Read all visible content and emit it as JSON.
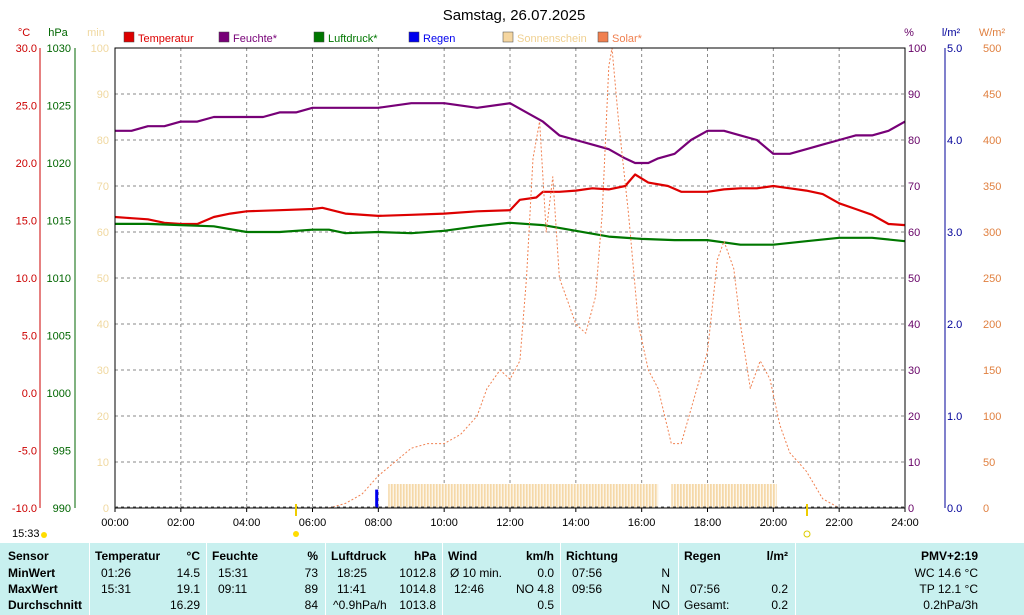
{
  "chart_data": {
    "type": "line",
    "title": "Samstag, 26.07.2025",
    "x_tick_labels": [
      "00:00",
      "02:00",
      "04:00",
      "06:00",
      "08:00",
      "10:00",
      "12:00",
      "14:00",
      "16:00",
      "18:00",
      "20:00",
      "22:00",
      "24:00"
    ],
    "xlim_hours": [
      0,
      24
    ],
    "axes": {
      "temperature": {
        "unit": "°C",
        "color": "#cc0000",
        "range": [
          -10,
          30
        ],
        "ticks": [
          "30.0",
          "25.0",
          "20.0",
          "15.0",
          "10.0",
          "5.0",
          "0.0",
          "-5.0",
          "-10.0"
        ]
      },
      "pressure": {
        "unit": "hPa",
        "color": "#006600",
        "range": [
          990,
          1030
        ],
        "ticks": [
          "1030",
          "1025",
          "1020",
          "1015",
          "1010",
          "1005",
          "1000",
          "995",
          "990"
        ]
      },
      "minutes": {
        "unit": "min",
        "color": "#f0d8a0",
        "range": [
          0,
          100
        ],
        "ticks": [
          "100",
          "90",
          "80",
          "70",
          "60",
          "50",
          "40",
          "30",
          "20",
          "10",
          "0"
        ]
      },
      "humidity": {
        "unit": "%",
        "color": "#660066",
        "range": [
          0,
          100
        ],
        "ticks": [
          "100",
          "90",
          "80",
          "70",
          "60",
          "50",
          "40",
          "30",
          "20",
          "10",
          "0"
        ]
      },
      "rain": {
        "unit": "l/m²",
        "color": "#000099",
        "range": [
          0,
          5
        ],
        "ticks": [
          "5.0",
          "4.0",
          "3.0",
          "2.0",
          "1.0",
          "0.0"
        ]
      },
      "solar": {
        "unit": "W/m²",
        "color": "#e08040",
        "range": [
          0,
          500
        ],
        "ticks": [
          "500",
          "450",
          "400",
          "350",
          "300",
          "250",
          "200",
          "150",
          "100",
          "50",
          "0"
        ]
      }
    },
    "legend": [
      {
        "name": "Temperatur",
        "color": "#dd0000"
      },
      {
        "name": "Feuchte*",
        "color": "#770077"
      },
      {
        "name": "Luftdruck*",
        "color": "#007700"
      },
      {
        "name": "Regen",
        "color": "#0000ee"
      },
      {
        "name": "Sonnenschein",
        "color": "#f5d6a0"
      },
      {
        "name": "Solar*",
        "color": "#f08050"
      }
    ],
    "sunrise_label": "15:33",
    "series": [
      {
        "name": "Temperatur",
        "axis": "temperature",
        "color": "#dd0000",
        "points": [
          [
            0,
            15.3
          ],
          [
            0.5,
            15.2
          ],
          [
            1,
            15.1
          ],
          [
            1.5,
            14.8
          ],
          [
            2,
            14.7
          ],
          [
            2.5,
            14.7
          ],
          [
            3,
            15.3
          ],
          [
            3.5,
            15.6
          ],
          [
            4,
            15.8
          ],
          [
            5,
            15.9
          ],
          [
            6,
            16.0
          ],
          [
            6.3,
            16.1
          ],
          [
            7,
            15.6
          ],
          [
            8,
            15.4
          ],
          [
            9,
            15.5
          ],
          [
            10,
            15.6
          ],
          [
            11,
            15.8
          ],
          [
            12,
            15.9
          ],
          [
            12.3,
            16.8
          ],
          [
            12.8,
            17.0
          ],
          [
            13,
            17.5
          ],
          [
            13.5,
            17.5
          ],
          [
            14,
            17.6
          ],
          [
            14.5,
            17.8
          ],
          [
            15,
            17.7
          ],
          [
            15.5,
            18.0
          ],
          [
            15.8,
            19.0
          ],
          [
            16.2,
            18.3
          ],
          [
            16.8,
            18.0
          ],
          [
            17.2,
            17.5
          ],
          [
            18,
            17.5
          ],
          [
            18.5,
            17.7
          ],
          [
            19,
            17.8
          ],
          [
            19.5,
            17.8
          ],
          [
            20,
            18.0
          ],
          [
            20.5,
            17.8
          ],
          [
            21,
            17.6
          ],
          [
            21.5,
            17.3
          ],
          [
            22,
            16.5
          ],
          [
            22.5,
            16.0
          ],
          [
            23,
            15.5
          ],
          [
            23.5,
            14.7
          ],
          [
            24,
            14.6
          ]
        ]
      },
      {
        "name": "Feuchte*",
        "axis": "humidity",
        "color": "#770077",
        "points": [
          [
            0,
            82
          ],
          [
            0.5,
            82
          ],
          [
            1,
            83
          ],
          [
            1.5,
            83
          ],
          [
            2,
            84
          ],
          [
            2.5,
            84
          ],
          [
            3,
            85
          ],
          [
            4,
            85
          ],
          [
            4.5,
            85
          ],
          [
            5,
            86
          ],
          [
            5.5,
            86
          ],
          [
            6,
            87
          ],
          [
            7,
            87
          ],
          [
            8,
            87
          ],
          [
            9,
            88
          ],
          [
            10,
            88
          ],
          [
            11,
            87
          ],
          [
            12,
            88
          ],
          [
            12.5,
            86
          ],
          [
            13,
            84
          ],
          [
            13.5,
            81
          ],
          [
            14,
            80
          ],
          [
            14.5,
            79
          ],
          [
            15,
            78
          ],
          [
            15.5,
            76
          ],
          [
            15.8,
            75
          ],
          [
            16.2,
            75
          ],
          [
            16.5,
            76
          ],
          [
            17,
            77
          ],
          [
            17.5,
            80
          ],
          [
            18,
            82
          ],
          [
            18.5,
            82
          ],
          [
            19,
            81
          ],
          [
            19.5,
            80
          ],
          [
            20,
            77
          ],
          [
            20.5,
            77
          ],
          [
            21,
            78
          ],
          [
            21.5,
            79
          ],
          [
            22,
            80
          ],
          [
            22.5,
            81
          ],
          [
            23,
            81
          ],
          [
            23.5,
            82
          ],
          [
            24,
            84
          ]
        ]
      },
      {
        "name": "Luftdruck*",
        "axis": "pressure",
        "color": "#007700",
        "points": [
          [
            0,
            1014.7
          ],
          [
            1,
            1014.7
          ],
          [
            2,
            1014.6
          ],
          [
            3,
            1014.5
          ],
          [
            4,
            1014.0
          ],
          [
            5,
            1014.0
          ],
          [
            6,
            1014.2
          ],
          [
            6.5,
            1014.2
          ],
          [
            7,
            1013.9
          ],
          [
            8,
            1014.0
          ],
          [
            9,
            1013.9
          ],
          [
            10,
            1014.1
          ],
          [
            11,
            1014.5
          ],
          [
            12,
            1014.8
          ],
          [
            13,
            1014.6
          ],
          [
            14,
            1014.1
          ],
          [
            15,
            1013.6
          ],
          [
            16,
            1013.4
          ],
          [
            17,
            1013.3
          ],
          [
            18,
            1013.3
          ],
          [
            19,
            1012.9
          ],
          [
            20,
            1012.9
          ],
          [
            21,
            1013.2
          ],
          [
            22,
            1013.5
          ],
          [
            23,
            1013.5
          ],
          [
            24,
            1013.2
          ]
        ]
      },
      {
        "name": "Solar*",
        "axis": "solar",
        "color": "#f08050",
        "dashed": true,
        "points": [
          [
            6.5,
            0
          ],
          [
            7,
            5
          ],
          [
            7.5,
            15
          ],
          [
            8,
            35
          ],
          [
            8.5,
            50
          ],
          [
            9,
            65
          ],
          [
            9.5,
            70
          ],
          [
            10,
            70
          ],
          [
            10.5,
            80
          ],
          [
            11,
            100
          ],
          [
            11.3,
            130
          ],
          [
            11.7,
            150
          ],
          [
            12,
            140
          ],
          [
            12.3,
            160
          ],
          [
            12.5,
            250
          ],
          [
            12.7,
            380
          ],
          [
            12.9,
            420
          ],
          [
            13.1,
            300
          ],
          [
            13.3,
            360
          ],
          [
            13.5,
            250
          ],
          [
            13.8,
            220
          ],
          [
            14,
            200
          ],
          [
            14.3,
            190
          ],
          [
            14.6,
            230
          ],
          [
            14.8,
            320
          ],
          [
            15,
            480
          ],
          [
            15.1,
            500
          ],
          [
            15.3,
            420
          ],
          [
            15.6,
            320
          ],
          [
            15.9,
            200
          ],
          [
            16.2,
            150
          ],
          [
            16.5,
            130
          ],
          [
            16.9,
            70
          ],
          [
            17.2,
            70
          ],
          [
            17.6,
            120
          ],
          [
            18,
            170
          ],
          [
            18.3,
            270
          ],
          [
            18.5,
            290
          ],
          [
            18.8,
            260
          ],
          [
            19,
            200
          ],
          [
            19.3,
            130
          ],
          [
            19.6,
            160
          ],
          [
            19.9,
            140
          ],
          [
            20.2,
            90
          ],
          [
            20.5,
            60
          ],
          [
            21,
            40
          ],
          [
            21.5,
            10
          ],
          [
            22,
            0
          ]
        ]
      }
    ],
    "sunshine_bars": [
      [
        8.3,
        16.5
      ],
      [
        16.9,
        20.1
      ]
    ],
    "rain_event": {
      "hour": 7.95,
      "value": 0.2
    }
  },
  "table": {
    "headers": {
      "sensor": "Sensor",
      "temp": "Temperatur",
      "temp_unit": "°C",
      "hum": "Feuchte",
      "hum_unit": "%",
      "press": "Luftdruck",
      "press_unit": "hPa",
      "wind": "Wind",
      "wind_unit": "km/h",
      "dir": "Richtung",
      "rain": "Regen",
      "rain_unit": "l/m²",
      "pmv": "PMV+2:19"
    },
    "min": {
      "label": "MinWert",
      "temp_time": "01:26",
      "temp_val": "14.5",
      "hum_time": "15:31",
      "hum_val": "73",
      "press_time": "18:25",
      "press_val": "1012.8",
      "wind_time": "Ø 10 min.",
      "wind_val": "0.0",
      "dir_time": "07:56",
      "dir_val": "N",
      "extra": "WC 14.6 °C"
    },
    "max": {
      "label": "MaxWert",
      "temp_time": "15:31",
      "temp_val": "19.1",
      "hum_time": "09:11",
      "hum_val": "89",
      "press_time": "11:41",
      "press_val": "1014.8",
      "wind_time": "12:46",
      "wind_val": "NO 4.8",
      "dir_time": "09:56",
      "dir_val": "N",
      "rain_time": "07:56",
      "rain_val": "0.2",
      "extra": "TP 12.1 °C"
    },
    "avg": {
      "label": "Durchschnitt",
      "temp_val": "16.29",
      "hum_val": "84",
      "press_time": "^0.9hPa/h",
      "press_val": "1013.8",
      "wind_val": "0.5",
      "dir_val": "NO",
      "rain_time": "Gesamt:",
      "rain_val": "0.2",
      "extra": "0.2hPa/3h"
    }
  }
}
